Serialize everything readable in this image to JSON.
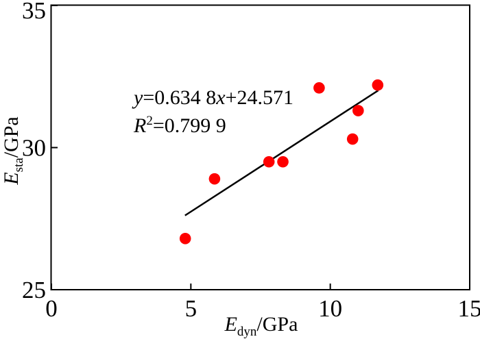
{
  "chart_data": {
    "type": "scatter",
    "title": "",
    "xlabel_parts": {
      "symbol": "E",
      "subscript": "dyn",
      "unit": "/GPa"
    },
    "ylabel_parts": {
      "symbol": "E",
      "subscript": "sta",
      "unit": "/GPa"
    },
    "xlim": [
      0,
      15
    ],
    "ylim": [
      25,
      35
    ],
    "x_tick_values": [
      0,
      5,
      10,
      15
    ],
    "x_tick_labels": [
      "0",
      "5",
      "10",
      "15"
    ],
    "y_tick_values": [
      25,
      30,
      35
    ],
    "y_tick_labels": [
      "25",
      "30",
      "35"
    ],
    "grid": false,
    "legend": false,
    "points": [
      {
        "x": 4.8,
        "y": 26.8
      },
      {
        "x": 5.85,
        "y": 28.9
      },
      {
        "x": 7.8,
        "y": 29.5
      },
      {
        "x": 8.3,
        "y": 29.5
      },
      {
        "x": 9.6,
        "y": 32.1
      },
      {
        "x": 10.8,
        "y": 30.3
      },
      {
        "x": 11.0,
        "y": 31.3
      },
      {
        "x": 11.7,
        "y": 32.2
      }
    ],
    "trendline": {
      "slope": 0.6348,
      "intercept": 24.571,
      "x_start": 4.79,
      "x_end": 11.72
    },
    "annotation": {
      "equation": {
        "y_var": "y",
        "mid": "=0.634 8",
        "x_var": "x",
        "tail": "+24.571"
      },
      "r_squared": {
        "r_var": "R",
        "exponent": "2",
        "tail": "=0.799 9"
      }
    },
    "colors": {
      "point": "#fe0000",
      "trendline": "#000000",
      "axis": "#000000",
      "text": "#000000"
    }
  }
}
